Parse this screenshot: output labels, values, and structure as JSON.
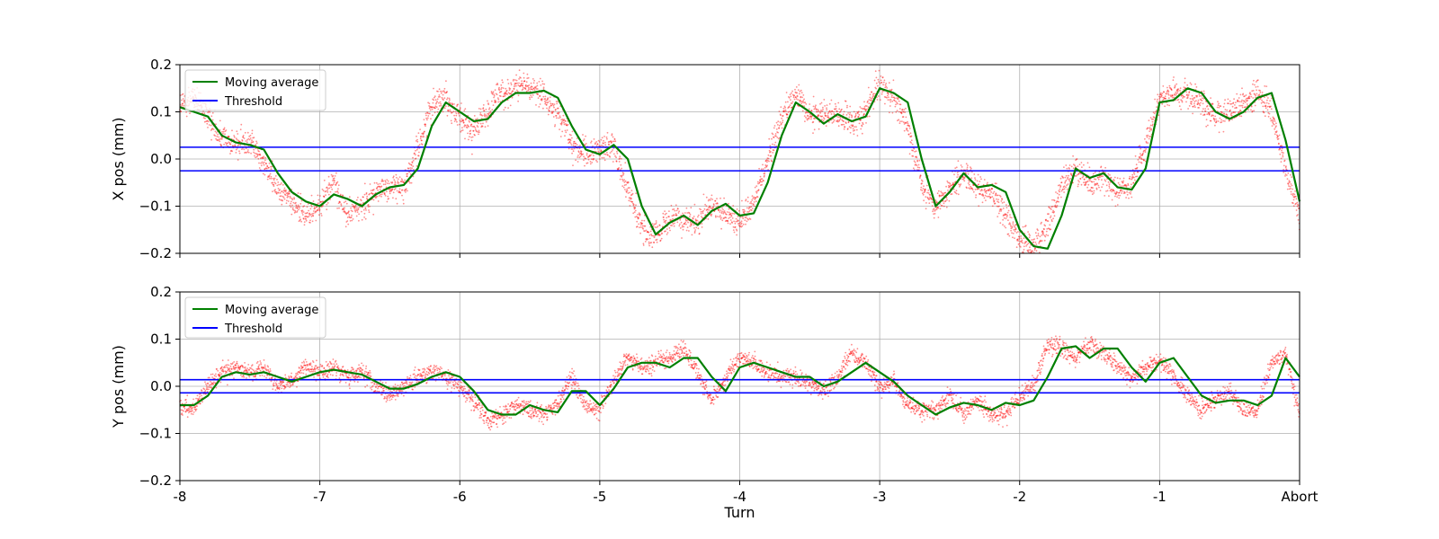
{
  "chart_data": [
    {
      "type": "scatter",
      "ylabel": "X pos (mm)",
      "ylim": [
        -0.2,
        0.2
      ],
      "yticks": [
        0.2,
        0.1,
        0.0,
        -0.1,
        -0.2
      ],
      "ytick_labels": [
        "0.2",
        "0.1",
        "0.0",
        "−0.1",
        "−0.2"
      ],
      "xlim": [
        -8,
        0
      ],
      "grid": true,
      "legend_position": "top-left",
      "thresholds": [
        0.025,
        -0.025
      ],
      "moving_average": {
        "x": [
          -8.0,
          -7.9,
          -7.8,
          -7.7,
          -7.6,
          -7.5,
          -7.4,
          -7.3,
          -7.2,
          -7.1,
          -7.0,
          -6.9,
          -6.8,
          -6.7,
          -6.6,
          -6.5,
          -6.4,
          -6.3,
          -6.2,
          -6.1,
          -6.0,
          -5.9,
          -5.8,
          -5.7,
          -5.6,
          -5.5,
          -5.4,
          -5.3,
          -5.2,
          -5.1,
          -5.0,
          -4.9,
          -4.8,
          -4.7,
          -4.6,
          -4.5,
          -4.4,
          -4.3,
          -4.2,
          -4.1,
          -4.0,
          -3.9,
          -3.8,
          -3.7,
          -3.6,
          -3.5,
          -3.4,
          -3.3,
          -3.2,
          -3.1,
          -3.0,
          -2.9,
          -2.8,
          -2.7,
          -2.6,
          -2.5,
          -2.4,
          -2.3,
          -2.2,
          -2.1,
          -2.0,
          -1.9,
          -1.8,
          -1.7,
          -1.6,
          -1.5,
          -1.4,
          -1.3,
          -1.2,
          -1.1,
          -1.0,
          -0.9,
          -0.8,
          -0.7,
          -0.6,
          -0.5,
          -0.4,
          -0.3,
          -0.2,
          -0.1,
          0.0
        ],
        "y": [
          0.11,
          0.1,
          0.09,
          0.05,
          0.035,
          0.03,
          0.02,
          -0.03,
          -0.07,
          -0.09,
          -0.1,
          -0.075,
          -0.085,
          -0.1,
          -0.075,
          -0.06,
          -0.055,
          -0.02,
          0.07,
          0.12,
          0.1,
          0.08,
          0.085,
          0.12,
          0.14,
          0.14,
          0.145,
          0.13,
          0.07,
          0.02,
          0.01,
          0.03,
          0.0,
          -0.1,
          -0.16,
          -0.135,
          -0.12,
          -0.14,
          -0.11,
          -0.095,
          -0.12,
          -0.115,
          -0.05,
          0.05,
          0.12,
          0.1,
          0.075,
          0.095,
          0.08,
          0.09,
          0.15,
          0.14,
          0.12,
          0.0,
          -0.1,
          -0.07,
          -0.03,
          -0.06,
          -0.055,
          -0.07,
          -0.15,
          -0.185,
          -0.19,
          -0.12,
          -0.02,
          -0.04,
          -0.03,
          -0.06,
          -0.065,
          -0.02,
          0.12,
          0.125,
          0.15,
          0.14,
          0.1,
          0.085,
          0.1,
          0.13,
          0.14,
          0.04,
          -0.09
        ]
      },
      "scatter_profile": {
        "x": [
          -8.0,
          -7.9,
          -7.8,
          -7.7,
          -7.6,
          -7.5,
          -7.4,
          -7.3,
          -7.2,
          -7.1,
          -7.0,
          -6.9,
          -6.8,
          -6.7,
          -6.6,
          -6.5,
          -6.4,
          -6.3,
          -6.2,
          -6.1,
          -6.0,
          -5.9,
          -5.8,
          -5.7,
          -5.6,
          -5.5,
          -5.4,
          -5.3,
          -5.2,
          -5.1,
          -5.0,
          -4.9,
          -4.8,
          -4.7,
          -4.6,
          -4.5,
          -4.4,
          -4.3,
          -4.2,
          -4.1,
          -4.0,
          -3.9,
          -3.8,
          -3.7,
          -3.6,
          -3.5,
          -3.4,
          -3.3,
          -3.2,
          -3.1,
          -3.0,
          -2.9,
          -2.8,
          -2.7,
          -2.6,
          -2.5,
          -2.4,
          -2.3,
          -2.2,
          -2.1,
          -2.0,
          -1.9,
          -1.8,
          -1.7,
          -1.6,
          -1.5,
          -1.4,
          -1.3,
          -1.2,
          -1.1,
          -1.0,
          -0.9,
          -0.8,
          -0.7,
          -0.6,
          -0.5,
          -0.4,
          -0.3,
          -0.2,
          -0.1,
          0.0
        ],
        "y": [
          0.11,
          0.13,
          0.09,
          0.05,
          0.03,
          0.04,
          -0.01,
          -0.06,
          -0.09,
          -0.12,
          -0.1,
          -0.05,
          -0.12,
          -0.1,
          -0.07,
          -0.06,
          -0.06,
          0.02,
          0.12,
          0.13,
          0.08,
          0.06,
          0.1,
          0.14,
          0.15,
          0.16,
          0.13,
          0.1,
          0.03,
          0.01,
          0.02,
          0.03,
          -0.06,
          -0.15,
          -0.16,
          -0.12,
          -0.13,
          -0.14,
          -0.1,
          -0.12,
          -0.13,
          -0.09,
          0.0,
          0.09,
          0.14,
          0.09,
          0.1,
          0.09,
          0.08,
          0.1,
          0.16,
          0.13,
          0.07,
          -0.05,
          -0.11,
          -0.06,
          -0.03,
          -0.06,
          -0.07,
          -0.12,
          -0.17,
          -0.19,
          -0.14,
          -0.06,
          -0.02,
          -0.05,
          -0.04,
          -0.07,
          -0.05,
          0.03,
          0.13,
          0.14,
          0.14,
          0.12,
          0.09,
          0.1,
          0.12,
          0.14,
          0.1,
          -0.02,
          -0.13
        ]
      }
    },
    {
      "type": "scatter",
      "ylabel": "Y pos (mm)",
      "xlabel": "Turn",
      "ylim": [
        -0.2,
        0.2
      ],
      "yticks": [
        0.2,
        0.1,
        0.0,
        -0.1,
        -0.2
      ],
      "ytick_labels": [
        "0.2",
        "0.1",
        "0.0",
        "−0.1",
        "−0.2"
      ],
      "xlim": [
        -8,
        0
      ],
      "xticks": [
        -8,
        -7,
        -6,
        -5,
        -4,
        -3,
        -2,
        -1,
        0
      ],
      "xtick_labels": [
        "-8",
        "-7",
        "-6",
        "-5",
        "-4",
        "-3",
        "-2",
        "-1",
        "Abort"
      ],
      "grid": true,
      "legend_position": "top-left",
      "thresholds": [
        0.014,
        -0.014
      ],
      "moving_average": {
        "x": [
          -8.0,
          -7.9,
          -7.8,
          -7.7,
          -7.6,
          -7.5,
          -7.4,
          -7.3,
          -7.2,
          -7.1,
          -7.0,
          -6.9,
          -6.8,
          -6.7,
          -6.6,
          -6.5,
          -6.4,
          -6.3,
          -6.2,
          -6.1,
          -6.0,
          -5.9,
          -5.8,
          -5.7,
          -5.6,
          -5.5,
          -5.4,
          -5.3,
          -5.2,
          -5.1,
          -5.0,
          -4.9,
          -4.8,
          -4.7,
          -4.6,
          -4.5,
          -4.4,
          -4.3,
          -4.2,
          -4.1,
          -4.0,
          -3.9,
          -3.8,
          -3.7,
          -3.6,
          -3.5,
          -3.4,
          -3.3,
          -3.2,
          -3.1,
          -3.0,
          -2.9,
          -2.8,
          -2.7,
          -2.6,
          -2.5,
          -2.4,
          -2.3,
          -2.2,
          -2.1,
          -2.0,
          -1.9,
          -1.8,
          -1.7,
          -1.6,
          -1.5,
          -1.4,
          -1.3,
          -1.2,
          -1.1,
          -1.0,
          -0.9,
          -0.8,
          -0.7,
          -0.6,
          -0.5,
          -0.4,
          -0.3,
          -0.2,
          -0.1,
          0.0
        ],
        "y": [
          -0.04,
          -0.04,
          -0.02,
          0.02,
          0.03,
          0.025,
          0.03,
          0.02,
          0.01,
          0.02,
          0.03,
          0.035,
          0.03,
          0.025,
          0.01,
          -0.005,
          -0.005,
          0.005,
          0.02,
          0.03,
          0.02,
          -0.01,
          -0.05,
          -0.06,
          -0.06,
          -0.04,
          -0.05,
          -0.055,
          -0.01,
          -0.01,
          -0.04,
          -0.005,
          0.04,
          0.05,
          0.05,
          0.04,
          0.06,
          0.06,
          0.02,
          -0.01,
          0.04,
          0.05,
          0.04,
          0.03,
          0.02,
          0.02,
          0.0,
          0.01,
          0.03,
          0.05,
          0.03,
          0.01,
          -0.02,
          -0.04,
          -0.06,
          -0.045,
          -0.035,
          -0.04,
          -0.05,
          -0.035,
          -0.04,
          -0.03,
          0.02,
          0.08,
          0.085,
          0.06,
          0.08,
          0.08,
          0.04,
          0.01,
          0.05,
          0.06,
          0.02,
          -0.02,
          -0.035,
          -0.03,
          -0.03,
          -0.04,
          -0.02,
          0.06,
          0.02
        ]
      },
      "scatter_profile": {
        "x": [
          -8.0,
          -7.9,
          -7.8,
          -7.7,
          -7.6,
          -7.5,
          -7.4,
          -7.3,
          -7.2,
          -7.1,
          -7.0,
          -6.9,
          -6.8,
          -6.7,
          -6.6,
          -6.5,
          -6.4,
          -6.3,
          -6.2,
          -6.1,
          -6.0,
          -5.9,
          -5.8,
          -5.7,
          -5.6,
          -5.5,
          -5.4,
          -5.3,
          -5.2,
          -5.1,
          -5.0,
          -4.9,
          -4.8,
          -4.7,
          -4.6,
          -4.5,
          -4.4,
          -4.3,
          -4.2,
          -4.1,
          -4.0,
          -3.9,
          -3.8,
          -3.7,
          -3.6,
          -3.5,
          -3.4,
          -3.3,
          -3.2,
          -3.1,
          -3.0,
          -2.9,
          -2.8,
          -2.7,
          -2.6,
          -2.5,
          -2.4,
          -2.3,
          -2.2,
          -2.1,
          -2.0,
          -1.9,
          -1.8,
          -1.7,
          -1.6,
          -1.5,
          -1.4,
          -1.3,
          -1.2,
          -1.1,
          -1.0,
          -0.9,
          -0.8,
          -0.7,
          -0.6,
          -0.5,
          -0.4,
          -0.3,
          -0.2,
          -0.1,
          0.0
        ],
        "y": [
          -0.04,
          -0.05,
          0.0,
          0.03,
          0.04,
          0.03,
          0.04,
          0.0,
          0.01,
          0.04,
          0.03,
          0.04,
          0.02,
          0.03,
          0.0,
          -0.02,
          0.0,
          0.02,
          0.03,
          0.02,
          0.0,
          -0.03,
          -0.07,
          -0.06,
          -0.04,
          -0.05,
          -0.06,
          -0.04,
          0.02,
          -0.04,
          -0.05,
          0.01,
          0.06,
          0.04,
          0.05,
          0.06,
          0.08,
          0.03,
          -0.03,
          0.02,
          0.06,
          0.05,
          0.03,
          0.02,
          0.02,
          0.01,
          -0.01,
          0.02,
          0.07,
          0.05,
          0.0,
          0.01,
          -0.04,
          -0.05,
          -0.05,
          -0.02,
          -0.06,
          -0.03,
          -0.06,
          -0.06,
          -0.02,
          0.0,
          0.09,
          0.08,
          0.06,
          0.09,
          0.07,
          0.04,
          0.02,
          0.04,
          0.06,
          0.02,
          -0.02,
          -0.05,
          -0.03,
          -0.01,
          -0.05,
          -0.05,
          0.05,
          0.07,
          -0.06
        ]
      }
    }
  ],
  "legend": {
    "moving_average_label": "Moving average",
    "threshold_label": "Threshold"
  },
  "colors": {
    "scatter": "#ff0000",
    "moving_average": "#008000",
    "threshold": "#0000ff",
    "grid": "#b0b0b0"
  }
}
